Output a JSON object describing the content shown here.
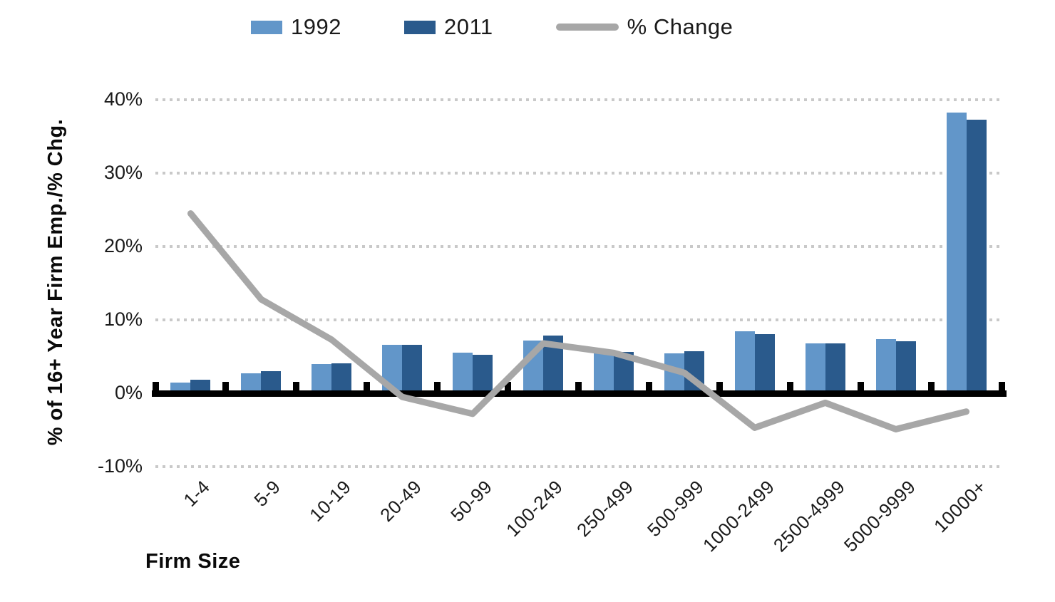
{
  "chart_data": {
    "type": "bar",
    "subtype": "grouped bars with overlaid line (combo chart)",
    "title": "",
    "xlabel": "Firm Size",
    "ylabel": "% of 16+ Year Firm Emp./% Chg.",
    "categories": [
      "1-4",
      "5-9",
      "10-19",
      "20-49",
      "50-99",
      "100-249",
      "250-499",
      "500-999",
      "1000-2499",
      "2500-4999",
      "5000-9999",
      "10000+"
    ],
    "series": [
      {
        "name": "1992",
        "type": "bar",
        "color": "#6296C9",
        "values": [
          1.5,
          2.7,
          4.0,
          6.6,
          5.5,
          7.2,
          5.4,
          5.4,
          8.4,
          6.8,
          7.4,
          38.3
        ]
      },
      {
        "name": "2011",
        "type": "bar",
        "color": "#2A5A8C",
        "values": [
          1.8,
          3.0,
          4.1,
          6.6,
          5.2,
          7.9,
          5.6,
          5.7,
          8.1,
          6.8,
          7.1,
          37.3
        ]
      },
      {
        "name": "% Change",
        "type": "line",
        "color": "#A7A7A7",
        "values": [
          24.5,
          12.8,
          7.3,
          -0.5,
          -2.8,
          6.8,
          5.5,
          2.8,
          -4.7,
          -1.3,
          -4.9,
          -2.5
        ]
      }
    ],
    "ylim": [
      -10,
      40
    ],
    "yticks": [
      40,
      30,
      20,
      10,
      0,
      -10
    ],
    "ytick_labels": [
      "40%",
      "30%",
      "20%",
      "10%",
      "0%",
      "-10%"
    ],
    "grid": "horizontal dotted gray lines at each y tick; solid thick black zero axis with inward tick marks",
    "legend_position": "top center",
    "colors": {
      "bar_1992": "#6296C9",
      "bar_2011": "#2A5A8C",
      "pct_change_line": "#A7A7A7",
      "gridline": "#C9C9C9",
      "axis": "#000000",
      "text": "#1A1A1A",
      "background": "#FFFFFF"
    }
  }
}
